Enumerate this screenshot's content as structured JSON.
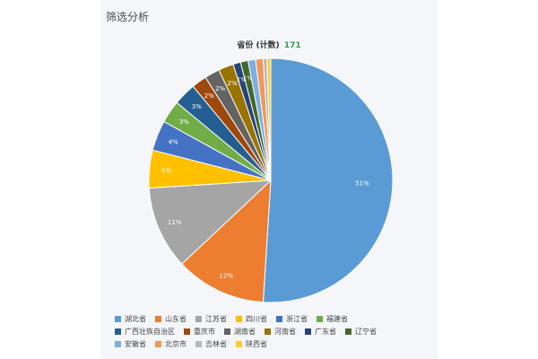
{
  "panel": {
    "title": "筛选分析"
  },
  "chart_heading": {
    "label": "省份 (计数)",
    "count": "171"
  },
  "chart_data": {
    "type": "pie",
    "title": "省份 (计数)",
    "total": 171,
    "slices": [
      {
        "name": "湖北省",
        "pct": 51,
        "color": "#5b9bd5",
        "label": "51%"
      },
      {
        "name": "山东省",
        "pct": 12,
        "color": "#ed7d31",
        "label": "12%"
      },
      {
        "name": "江苏省",
        "pct": 11,
        "color": "#a5a5a5",
        "label": "11%"
      },
      {
        "name": "四川省",
        "pct": 5,
        "color": "#ffc000",
        "label": "5%"
      },
      {
        "name": "浙江省",
        "pct": 4,
        "color": "#4472c4",
        "label": "4%"
      },
      {
        "name": "福建省",
        "pct": 3,
        "color": "#70ad47",
        "label": "3%"
      },
      {
        "name": "广西壮族自治区",
        "pct": 3,
        "color": "#255e91",
        "label": "3%"
      },
      {
        "name": "重庆市",
        "pct": 2,
        "color": "#9e480e",
        "label": "2%"
      },
      {
        "name": "湖南省",
        "pct": 2,
        "color": "#636363",
        "label": "2%"
      },
      {
        "name": "河南省",
        "pct": 2,
        "color": "#997300",
        "label": "2%"
      },
      {
        "name": "广东省",
        "pct": 1,
        "color": "#264478",
        "label": "1%"
      },
      {
        "name": "辽宁省",
        "pct": 1,
        "color": "#43682b",
        "label": "1%"
      },
      {
        "name": "安徽省",
        "pct": 1,
        "color": "#7cafdd",
        "label": ""
      },
      {
        "name": "北京市",
        "pct": 1,
        "color": "#f1975a",
        "label": ""
      },
      {
        "name": "吉林省",
        "pct": 0.5,
        "color": "#b7b7b7",
        "label": ""
      },
      {
        "name": "陕西省",
        "pct": 0.5,
        "color": "#ffcd33",
        "label": ""
      }
    ],
    "legend_placement": "bottom"
  }
}
